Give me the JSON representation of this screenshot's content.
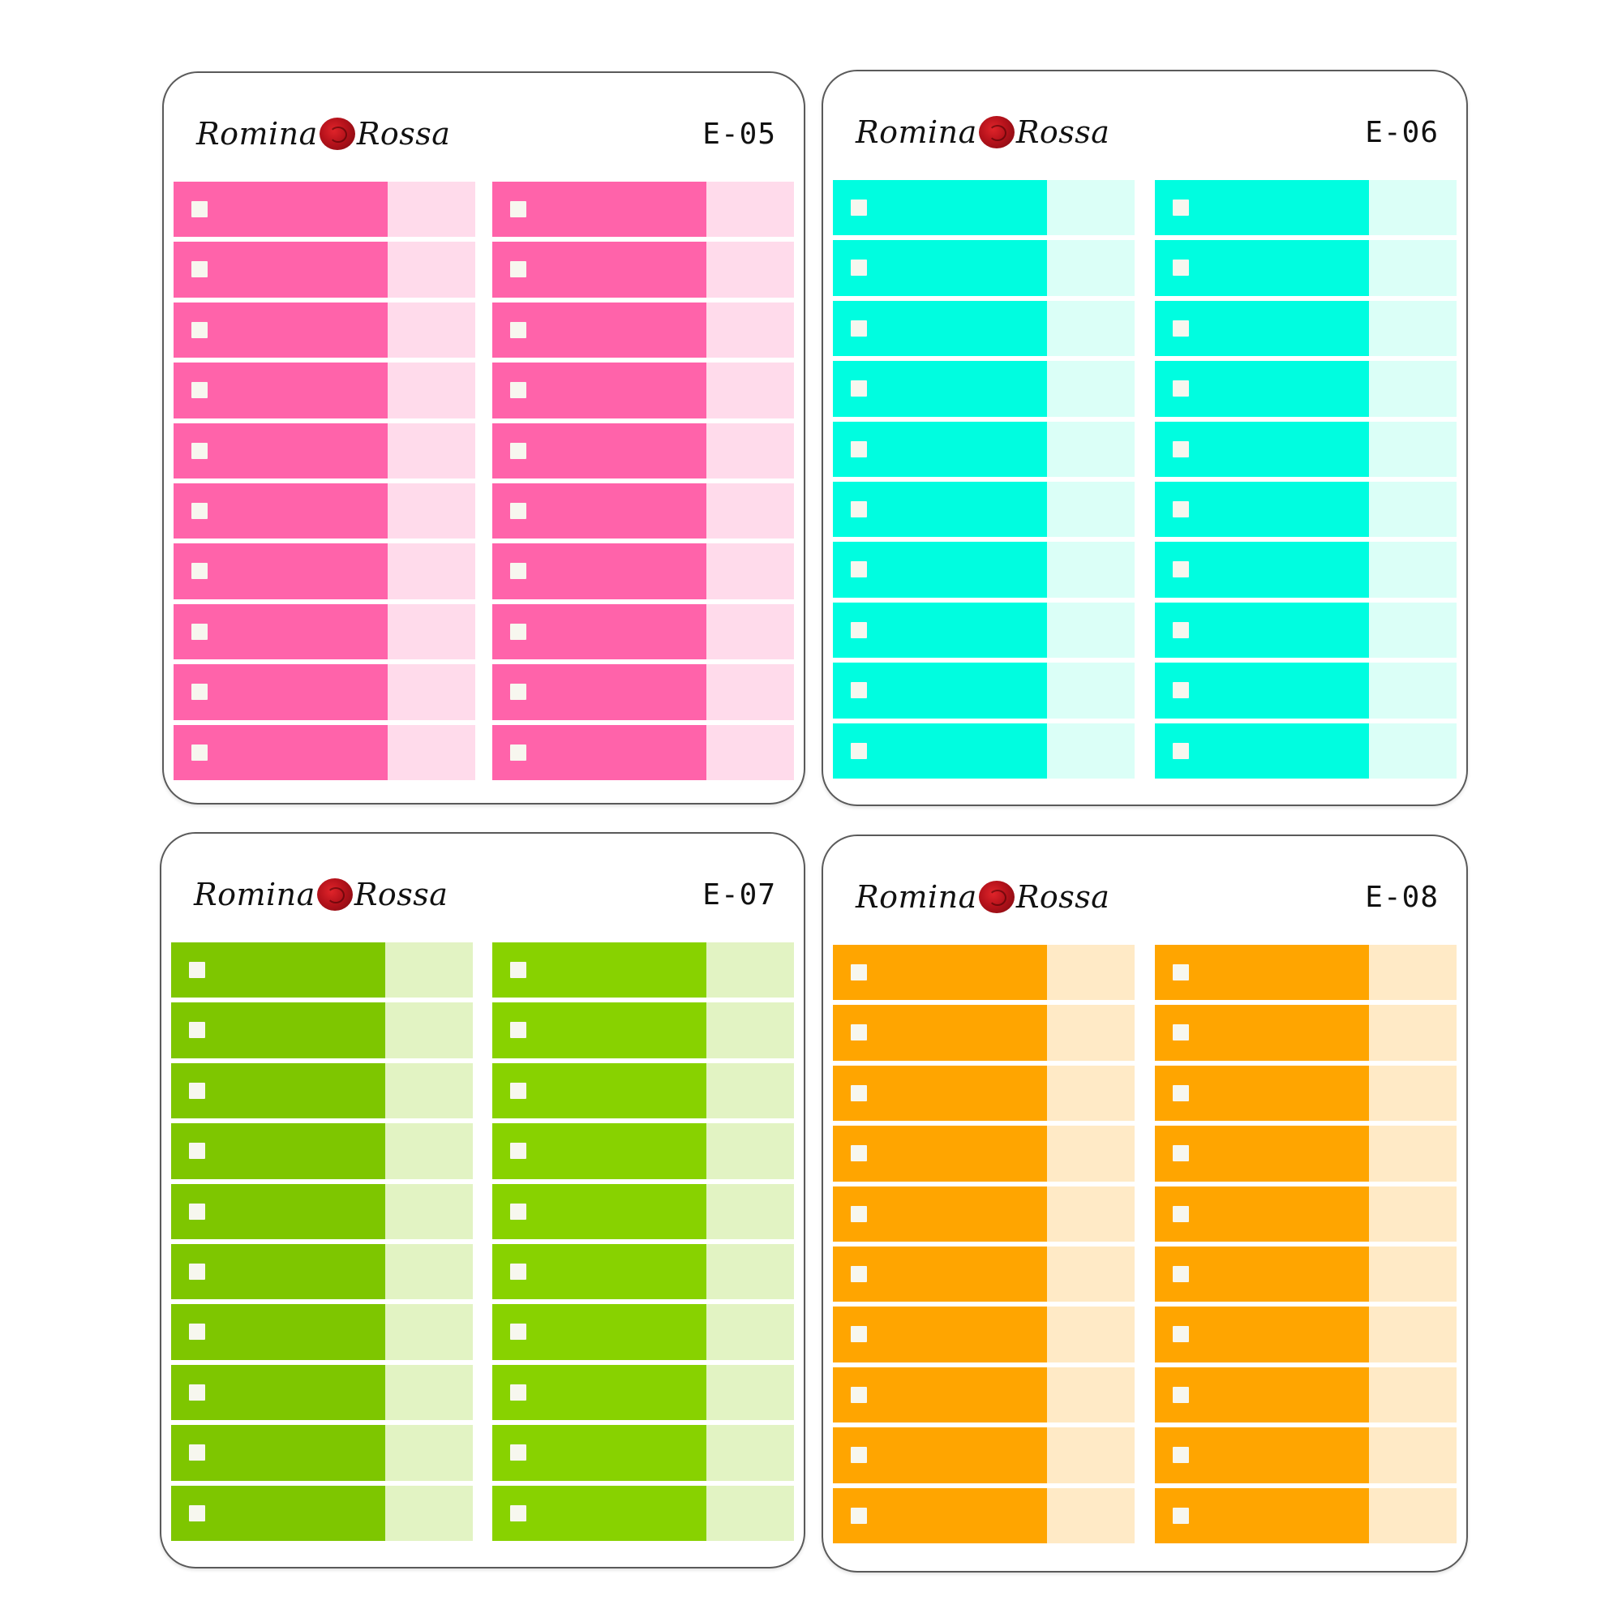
{
  "brand": {
    "name_left": "Romina",
    "name_right": "Rossa",
    "logo_icon": "rose-icon"
  },
  "sheets": [
    {
      "code": "E-05",
      "rows": 10,
      "colors": {
        "main_left": "#ff63aa",
        "main_right": "#ff63aa",
        "side": "#ffdbeb"
      }
    },
    {
      "code": "E-06",
      "rows": 10,
      "colors": {
        "main_left": "#00fde0",
        "main_right": "#00fde0",
        "side": "#dbfff7"
      }
    },
    {
      "code": "E-07",
      "rows": 10,
      "colors": {
        "main_left": "#7ec600",
        "main_right": "#88d200",
        "side": "#e2f3c3"
      }
    },
    {
      "code": "E-08",
      "rows": 10,
      "colors": {
        "main_left": "#ffa500",
        "main_right": "#ffa500",
        "side": "#ffeac6"
      }
    }
  ],
  "checkbox_icon": "checkbox-icon"
}
